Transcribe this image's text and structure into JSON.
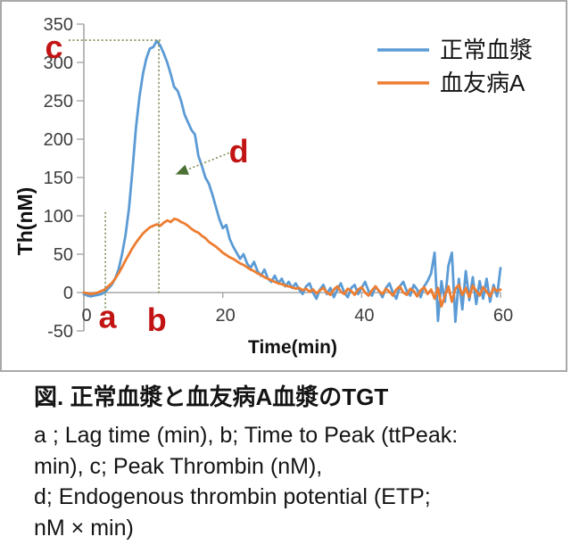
{
  "figure": {
    "caption": {
      "title": "図. 正常血漿と血友病A血漿のTGT",
      "lines": [
        "a ; Lag time (min), b; Time to Peak (ttPeak:",
        "min), c; Peak Thrombin (nM),",
        "d; Endogenous thrombin potential (ETP;",
        "nM × min)"
      ]
    }
  },
  "chart_data": {
    "type": "line",
    "title": "",
    "xlabel": "Time(min)",
    "ylabel": "Th(nM)",
    "xlim": [
      0,
      60
    ],
    "ylim": [
      -50,
      350
    ],
    "x_ticks": [
      0,
      20,
      40,
      60
    ],
    "y_ticks": [
      -50,
      0,
      50,
      100,
      150,
      200,
      250,
      300,
      350
    ],
    "grid": false,
    "legend_position": "top-right",
    "axis_color": "#A6A6A6",
    "border_color": "#A9A9A9",
    "annotation_color": "#C21414",
    "dash_color": "#7F8C52",
    "arrow_color": "#4A7032",
    "x_start": 0,
    "x_step": 0.5,
    "series": [
      {
        "name": "正常血漿",
        "color": "#5B9BD5",
        "values": [
          -2,
          -4,
          -5,
          -4,
          -3,
          -2,
          0,
          5,
          10,
          18,
          30,
          50,
          75,
          110,
          160,
          215,
          255,
          285,
          305,
          318,
          320,
          328,
          322,
          312,
          300,
          285,
          268,
          263,
          250,
          232,
          222,
          212,
          206,
          178,
          165,
          150,
          142,
          128,
          112,
          96,
          84,
          88,
          70,
          60,
          52,
          44,
          50,
          38,
          32,
          40,
          28,
          22,
          30,
          18,
          14,
          22,
          12,
          18,
          8,
          14,
          6,
          12,
          4,
          -2,
          8,
          12,
          0,
          -8,
          4,
          10,
          -2,
          6,
          -6,
          4,
          12,
          0,
          -6,
          6,
          10,
          -2,
          6,
          14,
          2,
          -4,
          8,
          2,
          -6,
          6,
          12,
          0,
          -8,
          8,
          14,
          2,
          -4,
          10,
          4,
          -6,
          8,
          15,
          25,
          52,
          -37,
          15,
          -12,
          35,
          52,
          -38,
          18,
          -22,
          28,
          -10,
          20,
          -15,
          15,
          -8,
          18,
          -12,
          10,
          -5,
          32
        ]
      },
      {
        "name": "血友病A",
        "color": "#ED7D31",
        "values": [
          0,
          -1,
          -2,
          -1,
          0,
          2,
          4,
          8,
          12,
          18,
          25,
          33,
          42,
          50,
          58,
          65,
          71,
          77,
          81,
          85,
          87,
          89,
          87,
          91,
          94,
          92,
          96,
          95,
          92,
          90,
          87,
          83,
          80,
          78,
          74,
          71,
          66,
          63,
          60,
          56,
          52,
          49,
          46,
          44,
          41,
          38,
          36,
          33,
          30,
          28,
          25,
          23,
          20,
          18,
          16,
          14,
          12,
          11,
          9,
          8,
          7,
          5,
          6,
          3,
          5,
          1,
          4,
          -1,
          3,
          6,
          0,
          -3,
          4,
          8,
          1,
          -2,
          5,
          2,
          -3,
          4,
          7,
          0,
          -4,
          3,
          8,
          2,
          -2,
          5,
          1,
          -4,
          4,
          8,
          0,
          -3,
          5,
          2,
          -5,
          3,
          7,
          -2,
          4,
          -8,
          6,
          -18,
          -4,
          8,
          -12,
          5,
          10,
          -3,
          6,
          -6,
          9,
          2,
          -4,
          7,
          1,
          -5,
          6,
          2,
          4
        ]
      }
    ],
    "annotations": [
      {
        "id": "a",
        "label": "a",
        "meaning": "Lag time (min)",
        "line": {
          "type": "vline",
          "t": 3.1,
          "v_from": 105,
          "v_to": -22
        },
        "label_pos": {
          "t": 3.4,
          "v": -46
        }
      },
      {
        "id": "b",
        "label": "b",
        "meaning": "Time to Peak (ttPeak: min)",
        "line": {
          "type": "vline",
          "t": 10.8,
          "v_from": 328,
          "v_to": -2
        },
        "label_pos": {
          "t": 10.5,
          "v": -50
        }
      },
      {
        "id": "c",
        "label": "c",
        "meaning": "Peak Thrombin (nM)",
        "line": {
          "type": "hline",
          "v": 329,
          "t_from": -2.2,
          "t_to": 11.2
        },
        "label_pos": {
          "t": -4.3,
          "v": 306
        }
      },
      {
        "id": "d",
        "label": "d",
        "meaning": "Endogenous thrombin potential (ETP; nM × min)",
        "arrow": {
          "t_from": 20.9,
          "v_from": 182,
          "t_to": 13.2,
          "v_to": 154
        },
        "label_pos": {
          "t": 22.3,
          "v": 170
        }
      }
    ]
  }
}
